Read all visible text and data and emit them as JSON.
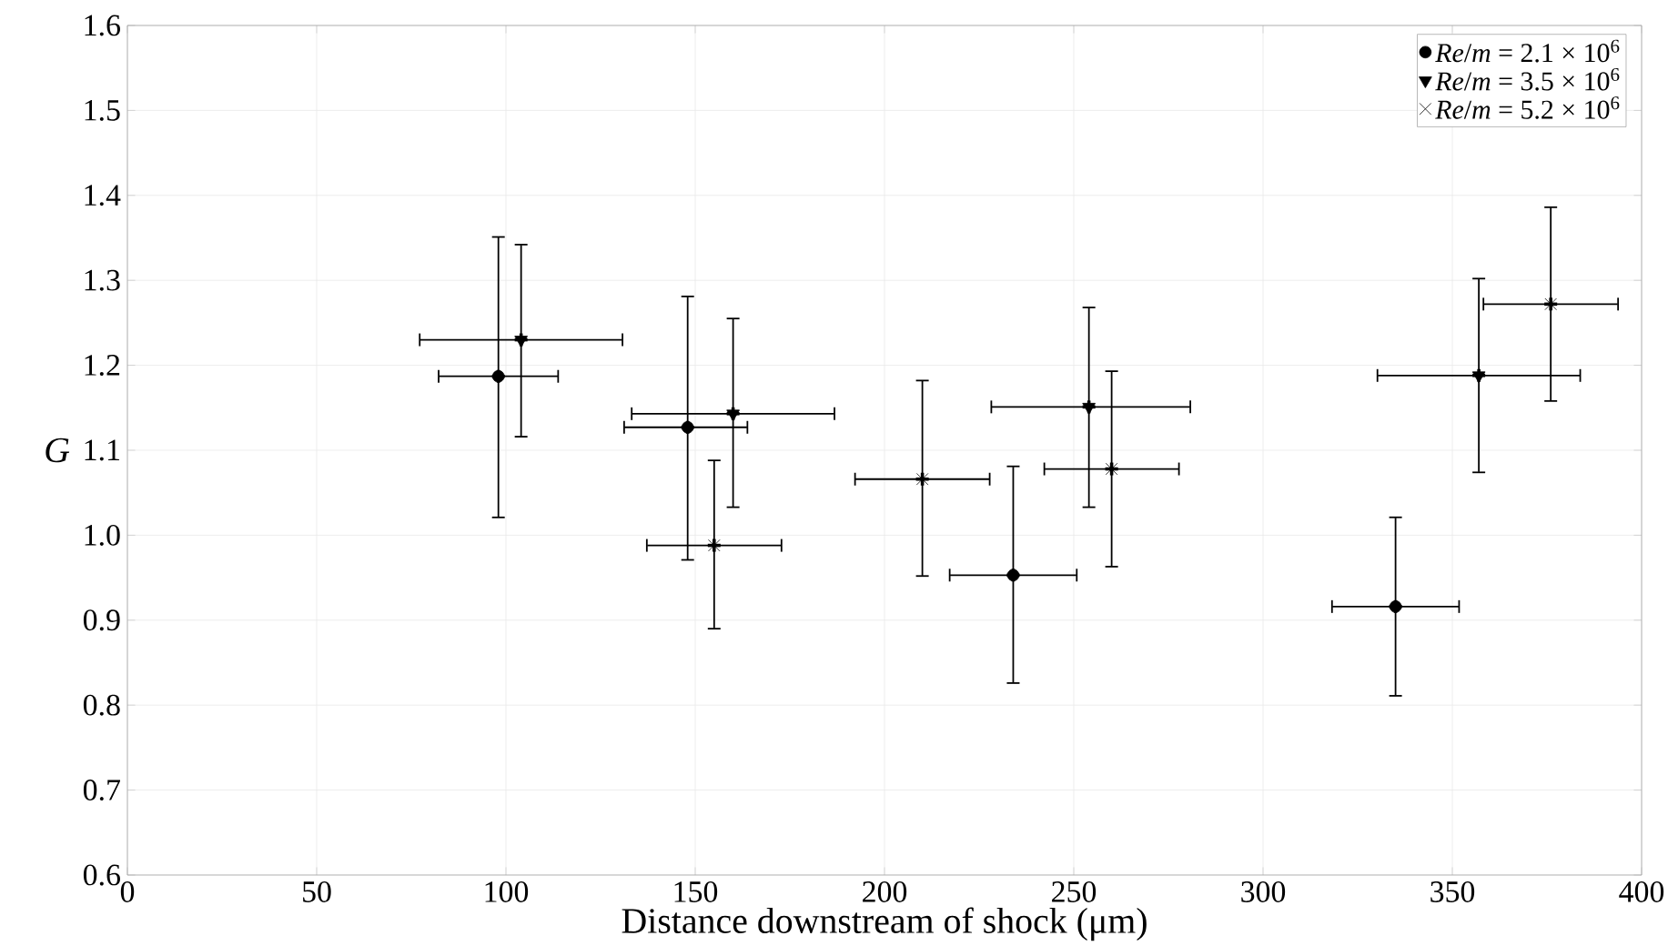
{
  "chart_data": {
    "type": "scatter",
    "xlabel": "Distance downstream of shock (μm)",
    "ylabel": "G",
    "xlim": [
      0,
      400
    ],
    "ylim": [
      0.6,
      1.6
    ],
    "xticks": [
      0,
      50,
      100,
      150,
      200,
      250,
      300,
      350,
      400
    ],
    "yticks": [
      0.6,
      0.7,
      0.8,
      0.9,
      {
        "value": 1.0,
        "label": "1.0"
      },
      1.1,
      1.2,
      1.3,
      1.4,
      1.5,
      1.6
    ],
    "grid": true,
    "legend": "top right",
    "series": [
      {
        "name": "*Re*/*m* = 2.1 × 10$^{6}$",
        "color": "#000000",
        "marker": "circle",
        "x": [
          98,
          148,
          234,
          335
        ],
        "values": [
          1.187,
          1.127,
          0.953,
          0.916
        ],
        "xerrors": [
          [
            82,
            114
          ],
          [
            131,
            164
          ],
          [
            217,
            251
          ],
          [
            318,
            352
          ]
        ],
        "errors": [
          [
            1.02,
            1.352
          ],
          [
            0.97,
            1.282
          ],
          [
            0.825,
            1.082
          ],
          [
            0.81,
            1.022
          ]
        ]
      },
      {
        "name": "*Re*/*m* = 3.5 × 10$^{6}$",
        "color": "#000000",
        "marker": "triangle",
        "x": [
          104,
          160,
          254,
          357
        ],
        "values": [
          1.23,
          1.143,
          1.151,
          1.188
        ],
        "xerrors": [
          [
            77,
            131
          ],
          [
            133,
            187
          ],
          [
            228,
            281
          ],
          [
            330,
            384
          ]
        ],
        "errors": [
          [
            1.115,
            1.343
          ],
          [
            1.032,
            1.256
          ],
          [
            1.032,
            1.269
          ],
          [
            1.073,
            1.303
          ]
        ]
      },
      {
        "name": "*Re*/*m* = 5.2 × 10$^{6}$",
        "color": "#000000",
        "marker": "cross",
        "x": [
          155,
          210,
          260,
          376
        ],
        "values": [
          0.988,
          1.066,
          1.078,
          1.272
        ],
        "xerrors": [
          [
            137,
            173
          ],
          [
            192,
            228
          ],
          [
            242,
            278
          ],
          [
            358,
            394
          ]
        ],
        "errors": [
          [
            0.889,
            1.089
          ],
          [
            0.951,
            1.183
          ],
          [
            0.962,
            1.194
          ],
          [
            1.157,
            1.387
          ]
        ]
      }
    ]
  }
}
